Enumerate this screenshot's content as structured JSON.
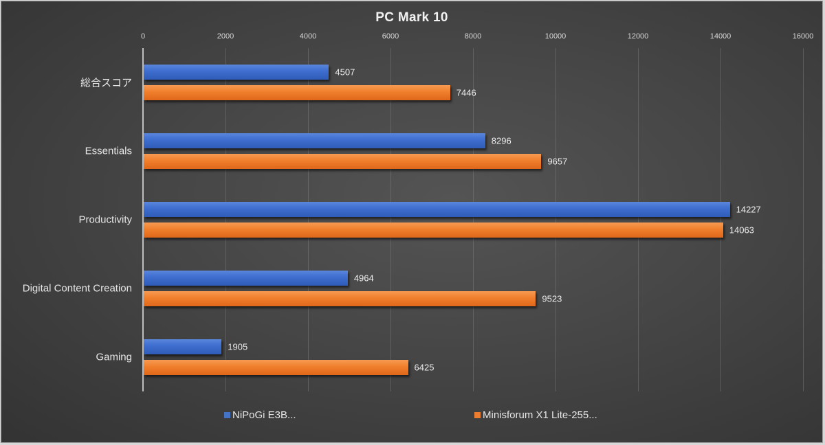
{
  "chart_data": {
    "type": "bar",
    "orientation": "horizontal",
    "title": "PC Mark 10",
    "xlabel": "",
    "ylabel": "",
    "xlim": [
      0,
      16000
    ],
    "x_ticks": [
      "0",
      "2000",
      "4000",
      "6000",
      "8000",
      "10000",
      "12000",
      "14000",
      "16000"
    ],
    "grid": true,
    "legend_position": "bottom",
    "categories": [
      "総合スコア",
      "Essentials",
      "Productivity",
      "Digital Content Creation",
      "Gaming"
    ],
    "series": [
      {
        "name": "NiPoGi E3B...",
        "color": "#4472c4",
        "values": [
          4507,
          8296,
          14227,
          4964,
          1905
        ]
      },
      {
        "name": "Minisforum X1 Lite-255...",
        "color": "#ed7d31",
        "values": [
          7446,
          9657,
          14063,
          9523,
          6425
        ]
      }
    ]
  }
}
